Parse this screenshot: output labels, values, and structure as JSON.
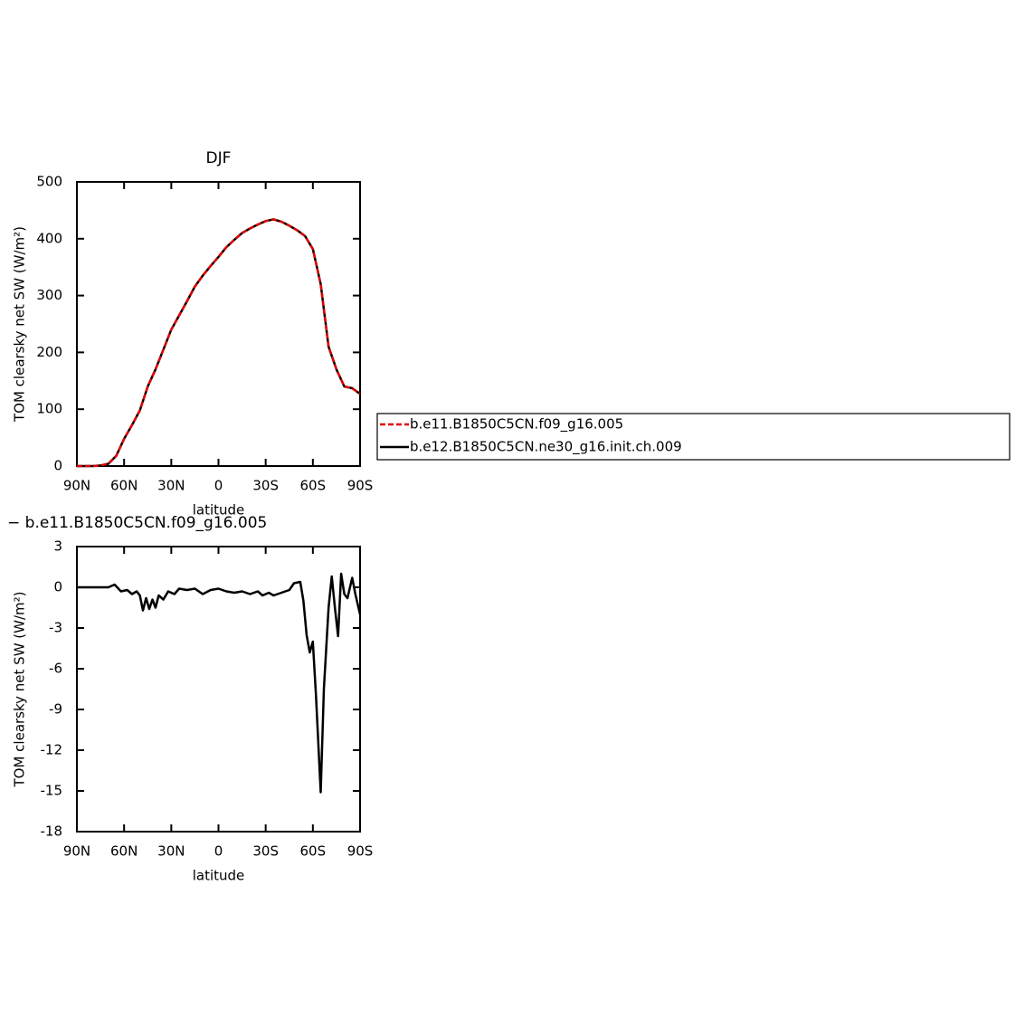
{
  "chart_data": [
    {
      "type": "line",
      "title": "DJF",
      "xlabel": "latitude",
      "ylabel": "TOM clearsky net SW (W/m²)",
      "x": [
        90,
        85,
        80,
        75,
        70,
        65,
        60,
        55,
        50,
        45,
        40,
        35,
        30,
        25,
        20,
        15,
        10,
        5,
        0,
        -5,
        -10,
        -15,
        -20,
        -25,
        -30,
        -35,
        -40,
        -45,
        -50,
        -55,
        -60,
        -65,
        -70,
        -75,
        -80,
        -85,
        -90
      ],
      "series": [
        {
          "name": "b.e11.B1850C5CN.f09_g16.005",
          "color": "#e00000",
          "dashed": true,
          "values": [
            0,
            0,
            0,
            1,
            4,
            18,
            48,
            72,
            98,
            140,
            170,
            205,
            240,
            265,
            290,
            316,
            335,
            352,
            368,
            385,
            398,
            410,
            418,
            425,
            431,
            434,
            430,
            423,
            415,
            405,
            382,
            320,
            210,
            170,
            140,
            137,
            127
          ]
        },
        {
          "name": "b.e12.B1850C5CN.ne30_g16.init.ch.009",
          "color": "#000000",
          "dashed": false,
          "values": [
            0,
            0,
            0,
            1,
            4,
            18,
            48,
            72,
            98,
            140,
            170,
            205,
            240,
            265,
            290,
            316,
            335,
            352,
            368,
            385,
            398,
            410,
            418,
            425,
            431,
            434,
            430,
            423,
            415,
            405,
            382,
            320,
            210,
            170,
            140,
            137,
            127
          ]
        }
      ],
      "xlim": [
        90,
        -90
      ],
      "xticks": [
        {
          "value": 90,
          "label": "90N"
        },
        {
          "value": 60,
          "label": "60N"
        },
        {
          "value": 30,
          "label": "30N"
        },
        0,
        {
          "value": -30,
          "label": "30S"
        },
        {
          "value": -60,
          "label": "60S"
        },
        {
          "value": -90,
          "label": "90S"
        }
      ],
      "ylim": [
        0,
        500
      ],
      "yticks": [
        0,
        100,
        200,
        300,
        400,
        500
      ]
    },
    {
      "type": "line",
      "title": "− b.e11.B1850C5CN.f09_g16.005",
      "xlabel": "latitude",
      "ylabel": "TOM clearsky net SW (W/m²)",
      "x": [
        90,
        80,
        70,
        66,
        62,
        58,
        55,
        52,
        50,
        48,
        46,
        44,
        42,
        40,
        38,
        35,
        32,
        28,
        25,
        20,
        15,
        10,
        5,
        0,
        -5,
        -10,
        -15,
        -20,
        -25,
        -28,
        -32,
        -35,
        -40,
        -45,
        -48,
        -52,
        -54,
        -56,
        -58,
        -60,
        -62,
        -65,
        -67,
        -70,
        -72,
        -74,
        -76,
        -78,
        -80,
        -82,
        -85,
        -87,
        -90
      ],
      "color": "#000000",
      "values": [
        0,
        0,
        0,
        0.2,
        -0.3,
        -0.2,
        -0.5,
        -0.3,
        -0.6,
        -1.7,
        -0.8,
        -1.6,
        -0.9,
        -1.5,
        -0.6,
        -0.9,
        -0.3,
        -0.5,
        -0.1,
        -0.2,
        -0.1,
        -0.5,
        -0.2,
        -0.1,
        -0.3,
        -0.4,
        -0.3,
        -0.5,
        -0.3,
        -0.6,
        -0.4,
        -0.6,
        -0.4,
        -0.2,
        0.3,
        0.4,
        -1,
        -3.5,
        -4.8,
        -4,
        -8,
        -15.1,
        -7.5,
        -1.5,
        0.8,
        -1.5,
        -3.6,
        1,
        -0.5,
        -0.8,
        0.7,
        -0.5,
        -2
      ],
      "xlim": [
        90,
        -90
      ],
      "xticks": [
        {
          "value": 90,
          "label": "90N"
        },
        {
          "value": 60,
          "label": "60N"
        },
        {
          "value": 30,
          "label": "30N"
        },
        0,
        {
          "value": -30,
          "label": "30S"
        },
        {
          "value": -60,
          "label": "60S"
        },
        {
          "value": -90,
          "label": "90S"
        }
      ],
      "ylim": [
        -18,
        3
      ],
      "yticks": [
        -18,
        -15,
        -12,
        -9,
        -6,
        -3,
        0,
        3
      ]
    }
  ]
}
